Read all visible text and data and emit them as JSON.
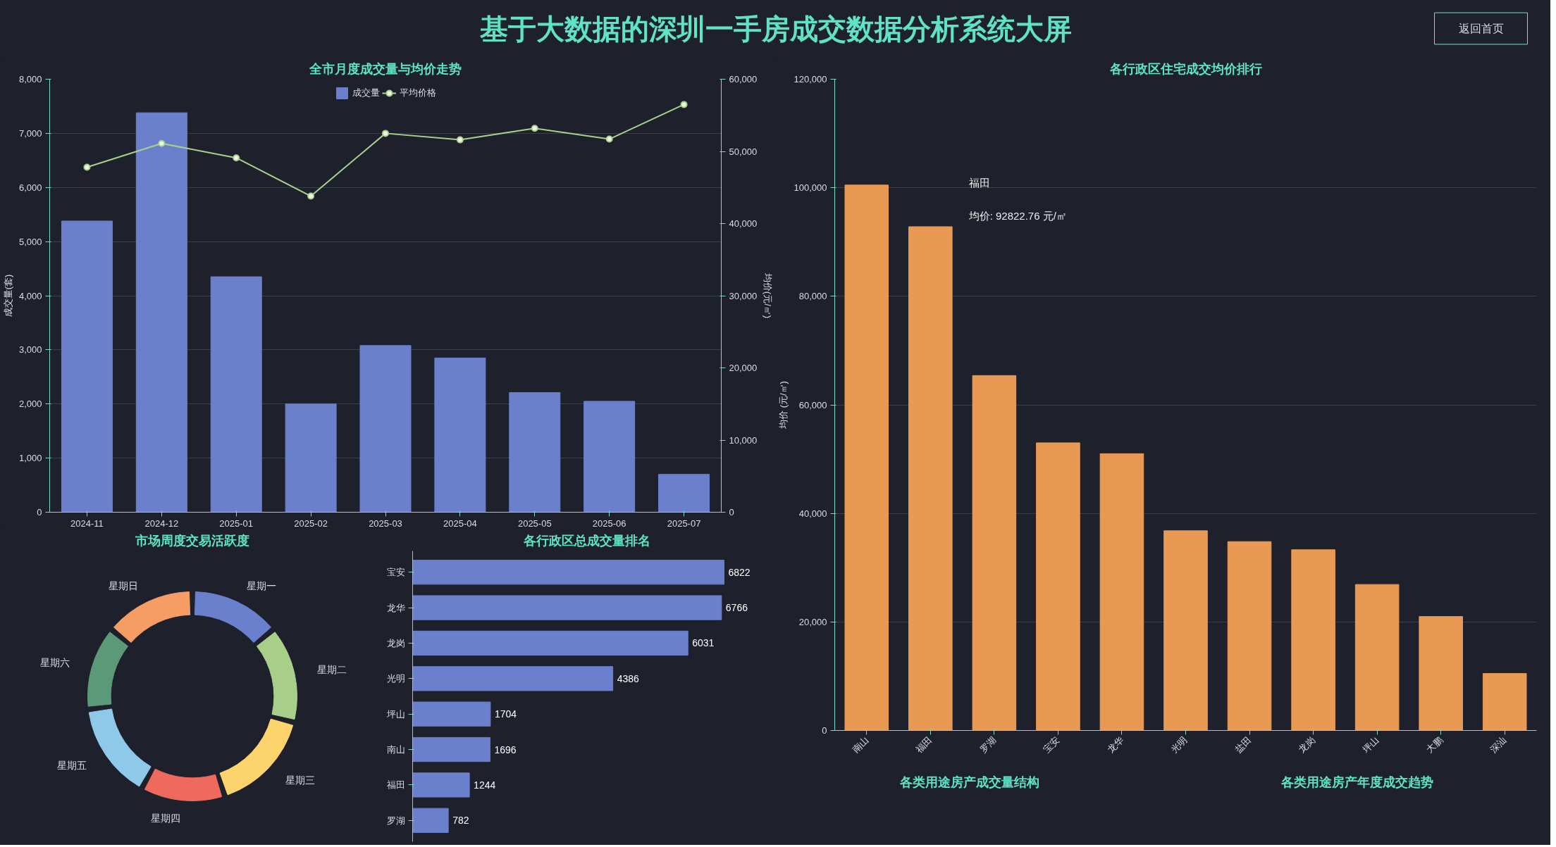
{
  "chart_data": [
    {
      "type": "other",
      "title": "基于大数据的深圳一手房成交数据分析系统大屏",
      "annotations": [
        "返回首页"
      ]
    },
    {
      "type": "bar",
      "title": "全市月度成交量与均价走势",
      "categories": [
        "2024-11",
        "2024-12",
        "2025-01",
        "2025-02",
        "2025-03",
        "2025-04",
        "2025-05",
        "2025-06",
        "2025-07"
      ],
      "series": [
        {
          "name": "成交量",
          "type": "bar",
          "color": "#6a80cc",
          "values": [
            5380,
            7380,
            4350,
            2000,
            3080,
            2850,
            2210,
            2050,
            700
          ]
        },
        {
          "name": "平均价格",
          "type": "line",
          "axis": "y2",
          "color": "#a9d18e",
          "marker": "circle",
          "values": [
            47800,
            51100,
            49100,
            43800,
            52500,
            51600,
            53200,
            51700,
            56500
          ]
        }
      ],
      "ylabel": "成交量(套)",
      "y2label": "均价(元/㎡)",
      "ylim": [
        0,
        8000
      ],
      "yticks": [
        0,
        {
          "value": 1000,
          "label": "1,000"
        },
        {
          "value": 2000,
          "label": "2,000"
        },
        {
          "value": 3000,
          "label": "3,000"
        },
        {
          "value": 4000,
          "label": "4,000"
        },
        {
          "value": 5000,
          "label": "5,000"
        },
        {
          "value": 6000,
          "label": "6,000"
        },
        {
          "value": 7000,
          "label": "7,000"
        },
        {
          "value": 8000,
          "label": "8,000"
        }
      ],
      "y2lim": [
        0,
        60000
      ],
      "y2ticks": [
        0,
        {
          "value": 10000,
          "label": "10,000"
        },
        {
          "value": 20000,
          "label": "20,000"
        },
        {
          "value": 30000,
          "label": "30,000"
        },
        {
          "value": 40000,
          "label": "40,000"
        },
        {
          "value": 50000,
          "label": "50,000"
        },
        {
          "value": 60000,
          "label": "60,000"
        }
      ],
      "grid": "y",
      "legend": "top"
    },
    {
      "type": "donut",
      "title": "市场周度交易活跃度",
      "categories": [
        "星期一",
        "星期二",
        "星期三",
        "星期四",
        "星期五",
        "星期六",
        "星期日"
      ],
      "values": [
        14,
        15,
        16,
        13,
        15,
        13,
        14
      ],
      "colors": [
        "#6a80cc",
        "#a8cf8a",
        "#fdd36b",
        "#ee6a5c",
        "#8fc9ea",
        "#5b9a78",
        "#f59d63"
      ]
    },
    {
      "type": "bar",
      "orientation": "horizontal",
      "title": "各行政区总成交量排名",
      "categories": [
        "宝安",
        "龙华",
        "龙岗",
        "光明",
        "坪山",
        "南山",
        "福田",
        "罗湖"
      ],
      "values": [
        6822,
        6766,
        6031,
        4386,
        1704,
        1696,
        1244,
        782
      ],
      "color": "#6a80cc",
      "data_labels": true,
      "tick_labels": "y"
    },
    {
      "type": "bar",
      "title": "各行政区住宅成交均价排行",
      "categories": [
        "南山",
        "福田",
        "罗湖",
        "宝安",
        "龙华",
        "光明",
        "盐田",
        "龙岗",
        "坪山",
        "大鹏",
        "深汕"
      ],
      "values": [
        100500,
        92822.76,
        65400,
        53000,
        51000,
        36800,
        34800,
        33300,
        26900,
        21000,
        10500
      ],
      "color": "#e89a55",
      "ylabel": "均价 (元/㎡)",
      "ylim": [
        0,
        120000
      ],
      "yticks": [
        0,
        {
          "value": 20000,
          "label": "20,000"
        },
        {
          "value": 40000,
          "label": "40,000"
        },
        {
          "value": 60000,
          "label": "60,000"
        },
        {
          "value": 80000,
          "label": "80,000"
        },
        {
          "value": 100000,
          "label": "100,000"
        },
        {
          "value": 120000,
          "label": "120,000"
        }
      ],
      "grid": "y",
      "annotations": [
        "福田",
        "均价: 92822.76 元/㎡"
      ]
    },
    {
      "type": "other",
      "title": "各类用途房产成交量结构"
    },
    {
      "type": "other",
      "title": "各类用途房产年度成交趋势"
    }
  ]
}
